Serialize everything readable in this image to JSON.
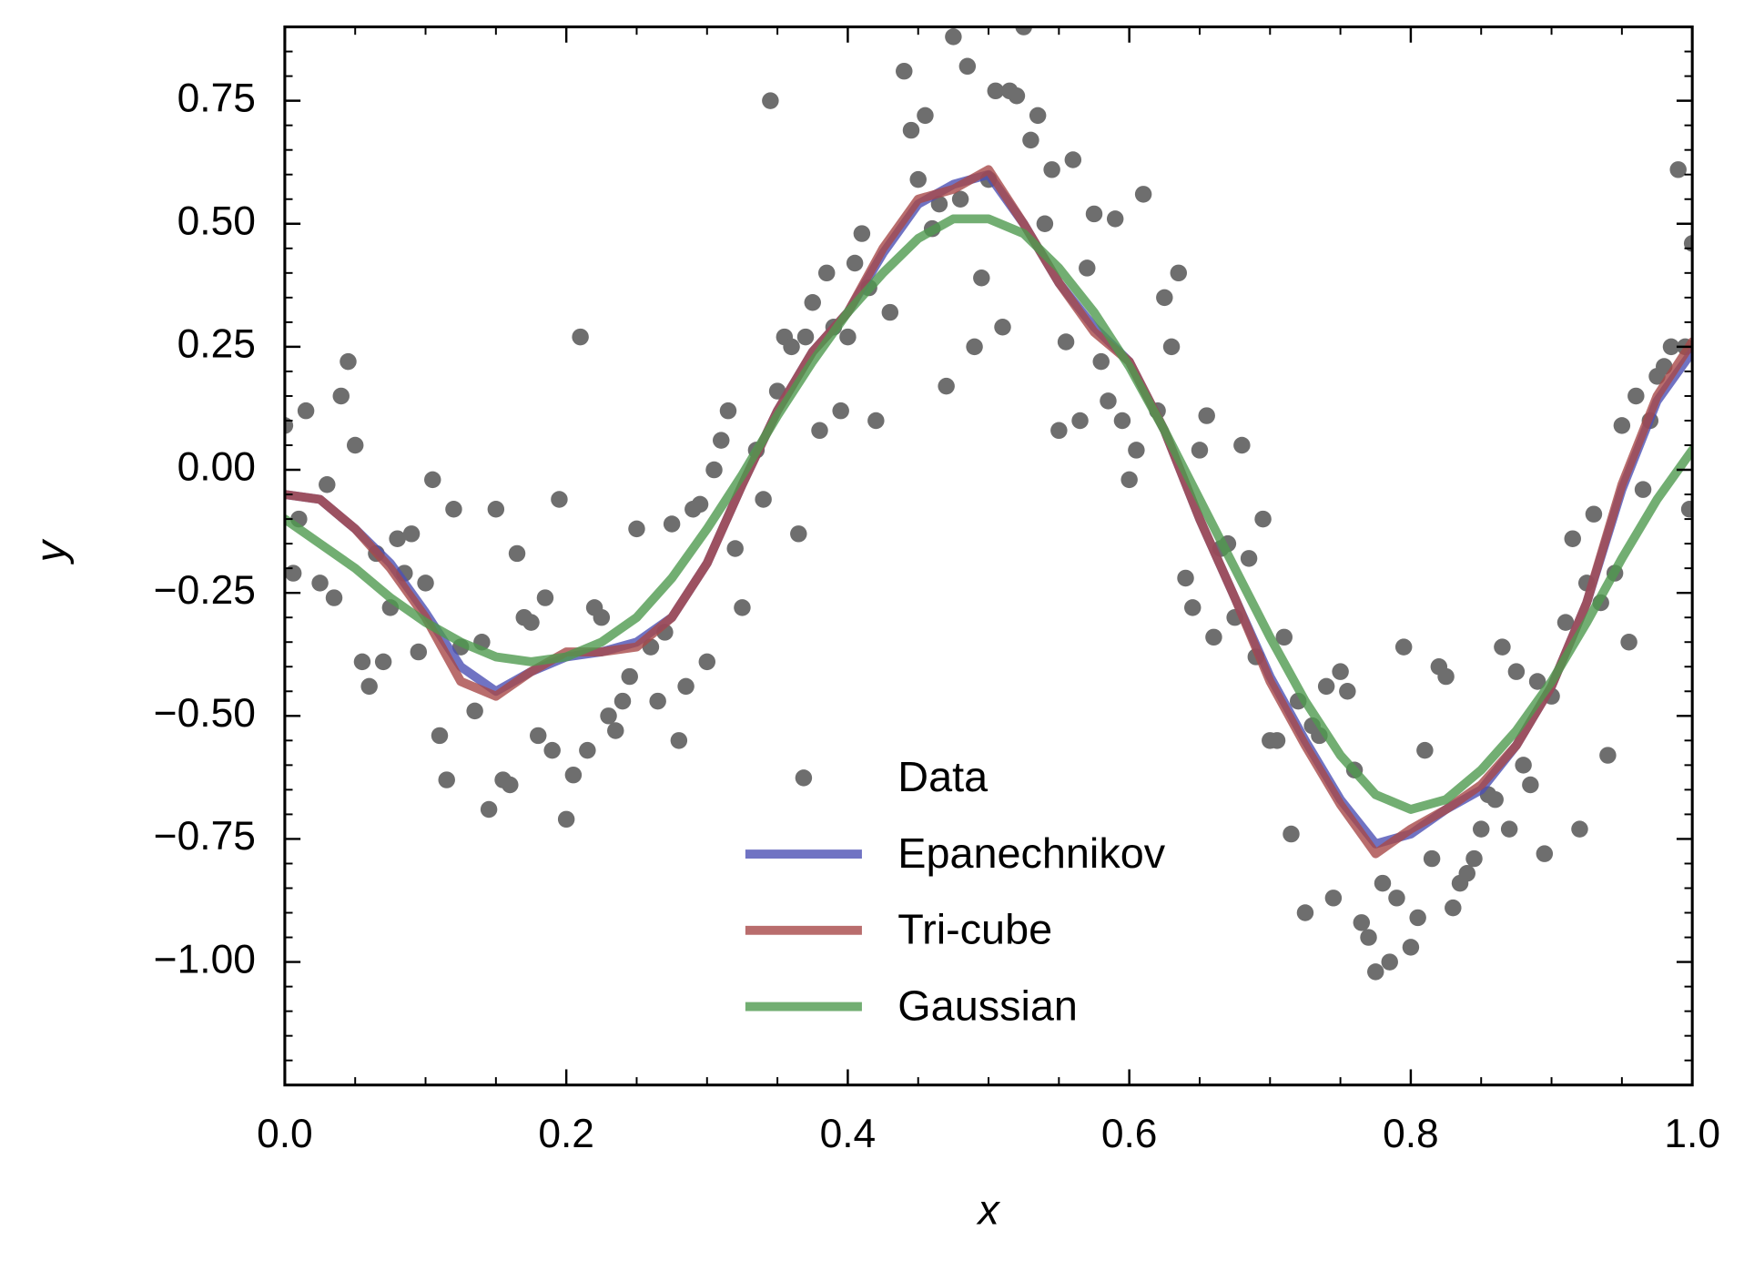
{
  "chart_data": {
    "type": "line",
    "x_label": "x",
    "y_label": "y",
    "xlim": [
      0,
      1
    ],
    "ylim": [
      -1.25,
      0.9
    ],
    "xticks": [
      {
        "value": 0,
        "label": "0.0"
      },
      0.2,
      0.4,
      0.6,
      0.8,
      {
        "value": 1,
        "label": "1.0"
      }
    ],
    "yticks": [
      {
        "value": -1,
        "label": "−1.00"
      },
      {
        "value": -0.75,
        "label": "−0.75"
      },
      {
        "value": -0.5,
        "label": "−0.50"
      },
      {
        "value": -0.25,
        "label": "−0.25"
      },
      {
        "value": 0,
        "label": "0.00"
      },
      {
        "value": 0.25,
        "label": "0.25"
      },
      {
        "value": 0.5,
        "label": "0.50"
      },
      0.75
    ],
    "xminor": [
      0.05,
      0.1,
      0.15,
      0.25,
      0.3,
      0.35,
      0.45,
      0.5,
      0.55,
      0.65,
      0.7,
      0.75,
      0.85,
      0.9,
      0.95
    ],
    "yminor": [
      -1.2,
      -1.15,
      -1.1,
      -1.05,
      -0.95,
      -0.9,
      -0.85,
      -0.8,
      -0.7,
      -0.65,
      -0.6,
      -0.55,
      -0.45,
      -0.4,
      -0.35,
      -0.3,
      -0.2,
      -0.15,
      -0.1,
      -0.05,
      0.05,
      0.1,
      0.15,
      0.2,
      0.3,
      0.35,
      0.4,
      0.45,
      0.55,
      0.6,
      0.65,
      0.7,
      0.8,
      0.85
    ],
    "legend": "lower center",
    "x": [
      0,
      0.025,
      0.05,
      0.075,
      0.1,
      0.125,
      0.15,
      0.175,
      0.2,
      0.225,
      0.25,
      0.275,
      0.3,
      0.325,
      0.35,
      0.375,
      0.4,
      0.425,
      0.45,
      0.475,
      0.5,
      0.525,
      0.55,
      0.575,
      0.6,
      0.625,
      0.65,
      0.675,
      0.7,
      0.725,
      0.75,
      0.775,
      0.8,
      0.825,
      0.85,
      0.875,
      0.9,
      0.925,
      0.95,
      0.975,
      1
    ],
    "series": [
      {
        "name": "Data",
        "type": "scatter",
        "color": "#6e6e6e",
        "x": [
          0.0,
          0.006,
          0.01,
          0.015,
          0.025,
          0.03,
          0.035,
          0.04,
          0.045,
          0.05,
          0.055,
          0.06,
          0.065,
          0.07,
          0.075,
          0.08,
          0.085,
          0.09,
          0.095,
          0.1,
          0.105,
          0.11,
          0.115,
          0.12,
          0.125,
          0.135,
          0.14,
          0.145,
          0.15,
          0.155,
          0.16,
          0.165,
          0.17,
          0.175,
          0.18,
          0.185,
          0.19,
          0.195,
          0.2,
          0.205,
          0.21,
          0.215,
          0.22,
          0.225,
          0.23,
          0.235,
          0.24,
          0.245,
          0.25,
          0.26,
          0.265,
          0.27,
          0.275,
          0.28,
          0.285,
          0.29,
          0.295,
          0.3,
          0.305,
          0.31,
          0.315,
          0.32,
          0.325,
          0.335,
          0.34,
          0.345,
          0.35,
          0.355,
          0.36,
          0.365,
          0.37,
          0.375,
          0.38,
          0.385,
          0.39,
          0.395,
          0.4,
          0.405,
          0.41,
          0.415,
          0.42,
          0.43,
          0.44,
          0.445,
          0.45,
          0.455,
          0.46,
          0.465,
          0.47,
          0.475,
          0.48,
          0.485,
          0.49,
          0.495,
          0.5,
          0.505,
          0.51,
          0.515,
          0.52,
          0.525,
          0.53,
          0.535,
          0.54,
          0.545,
          0.55,
          0.555,
          0.56,
          0.565,
          0.57,
          0.575,
          0.58,
          0.585,
          0.59,
          0.595,
          0.6,
          0.605,
          0.61,
          0.62,
          0.625,
          0.63,
          0.635,
          0.64,
          0.645,
          0.65,
          0.655,
          0.66,
          0.665,
          0.67,
          0.675,
          0.68,
          0.685,
          0.69,
          0.695,
          0.7,
          0.705,
          0.71,
          0.715,
          0.72,
          0.725,
          0.73,
          0.735,
          0.74,
          0.745,
          0.75,
          0.755,
          0.76,
          0.765,
          0.77,
          0.775,
          0.78,
          0.785,
          0.79,
          0.795,
          0.8,
          0.805,
          0.81,
          0.815,
          0.82,
          0.825,
          0.83,
          0.835,
          0.84,
          0.845,
          0.85,
          0.855,
          0.86,
          0.865,
          0.87,
          0.875,
          0.88,
          0.885,
          0.89,
          0.895,
          0.9,
          0.91,
          0.915,
          0.92,
          0.925,
          0.93,
          0.935,
          0.94,
          0.945,
          0.95,
          0.955,
          0.96,
          0.965,
          0.97,
          0.975,
          0.98,
          0.985,
          0.99,
          0.995,
          0.998,
          1.0
        ],
        "values": [
          0.09,
          -0.21,
          -0.1,
          0.12,
          -0.23,
          -0.03,
          -0.26,
          0.15,
          0.22,
          0.05,
          -0.39,
          -0.44,
          -0.17,
          -0.39,
          -0.28,
          -0.14,
          -0.21,
          -0.13,
          -0.37,
          -0.23,
          -0.02,
          -0.54,
          -0.63,
          -0.08,
          -0.36,
          -0.49,
          -0.35,
          -0.69,
          -0.08,
          -0.63,
          -0.64,
          -0.17,
          -0.3,
          -0.31,
          -0.54,
          -0.26,
          -0.57,
          -0.06,
          -0.71,
          -0.62,
          0.27,
          -0.57,
          -0.28,
          -0.3,
          -0.5,
          -0.53,
          -0.47,
          -0.42,
          -0.12,
          -0.36,
          -0.47,
          -0.33,
          -0.11,
          -0.55,
          -0.44,
          -0.08,
          -0.07,
          -0.39,
          0.0,
          0.06,
          0.12,
          -0.16,
          -0.28,
          0.04,
          -0.06,
          0.75,
          0.16,
          0.27,
          0.25,
          -0.13,
          0.27,
          0.34,
          0.08,
          0.4,
          0.29,
          0.12,
          0.27,
          0.42,
          0.48,
          0.37,
          0.1,
          0.32,
          0.81,
          0.69,
          0.59,
          0.72,
          0.49,
          0.54,
          0.17,
          0.88,
          0.55,
          0.82,
          0.25,
          0.39,
          0.59,
          0.77,
          0.29,
          0.77,
          0.76,
          0.9,
          0.67,
          0.72,
          0.5,
          0.61,
          0.08,
          0.26,
          0.63,
          0.1,
          0.41,
          0.52,
          0.22,
          0.14,
          0.51,
          0.1,
          -0.02,
          0.04,
          0.56,
          0.12,
          0.35,
          0.25,
          0.4,
          -0.22,
          -0.28,
          0.04,
          0.11,
          -0.34,
          -0.16,
          -0.15,
          -0.3,
          0.05,
          -0.18,
          -0.38,
          -0.1,
          -0.55,
          -0.55,
          -0.34,
          -0.74,
          -0.47,
          -0.9,
          -0.52,
          -0.54,
          -0.44,
          -0.87,
          -0.41,
          -0.45,
          -0.61,
          -0.92,
          -0.95,
          -1.02,
          -0.84,
          -1.0,
          -0.87,
          -0.36,
          -0.97,
          -0.91,
          -0.57,
          -0.79,
          -0.4,
          -0.42,
          -0.89,
          -0.84,
          -0.82,
          -0.79,
          -0.73,
          -0.66,
          -0.67,
          -0.36,
          -0.73,
          -0.41,
          -0.6,
          -0.64,
          -0.43,
          -0.78,
          -0.46,
          -0.31,
          -0.14,
          -0.73,
          -0.23,
          -0.09,
          -0.27,
          -0.58,
          -0.21,
          0.09,
          -0.35,
          0.15,
          -0.04,
          0.1,
          0.19,
          0.21,
          0.25,
          0.61,
          0.25,
          -0.08,
          0.46
        ]
      },
      {
        "name": "Epanechnikov",
        "color": "#4c50b4",
        "values": [
          -0.05,
          -0.06,
          -0.12,
          -0.19,
          -0.29,
          -0.4,
          -0.45,
          -0.41,
          -0.38,
          -0.37,
          -0.35,
          -0.3,
          -0.19,
          -0.03,
          0.12,
          0.24,
          0.32,
          0.44,
          0.54,
          0.58,
          0.6,
          0.5,
          0.38,
          0.29,
          0.22,
          0.08,
          -0.1,
          -0.26,
          -0.42,
          -0.55,
          -0.67,
          -0.76,
          -0.74,
          -0.69,
          -0.65,
          -0.56,
          -0.44,
          -0.27,
          -0.04,
          0.14,
          0.24
        ]
      },
      {
        "name": "Tri-cube",
        "color": "#a84848",
        "values": [
          -0.05,
          -0.06,
          -0.12,
          -0.2,
          -0.3,
          -0.43,
          -0.46,
          -0.41,
          -0.37,
          -0.37,
          -0.36,
          -0.3,
          -0.19,
          -0.03,
          0.12,
          0.24,
          0.32,
          0.45,
          0.55,
          0.57,
          0.61,
          0.5,
          0.38,
          0.28,
          0.22,
          0.08,
          -0.1,
          -0.26,
          -0.43,
          -0.56,
          -0.68,
          -0.78,
          -0.73,
          -0.69,
          -0.64,
          -0.56,
          -0.44,
          -0.27,
          -0.03,
          0.15,
          0.26
        ]
      },
      {
        "name": "Gaussian",
        "color": "#4f9a4f",
        "values": [
          -0.1,
          -0.15,
          -0.2,
          -0.26,
          -0.31,
          -0.35,
          -0.38,
          -0.39,
          -0.38,
          -0.35,
          -0.3,
          -0.22,
          -0.12,
          -0.01,
          0.11,
          0.22,
          0.32,
          0.4,
          0.47,
          0.51,
          0.51,
          0.48,
          0.41,
          0.32,
          0.21,
          0.08,
          -0.06,
          -0.2,
          -0.34,
          -0.47,
          -0.58,
          -0.66,
          -0.69,
          -0.67,
          -0.61,
          -0.53,
          -0.43,
          -0.31,
          -0.18,
          -0.06,
          0.04
        ]
      }
    ]
  }
}
